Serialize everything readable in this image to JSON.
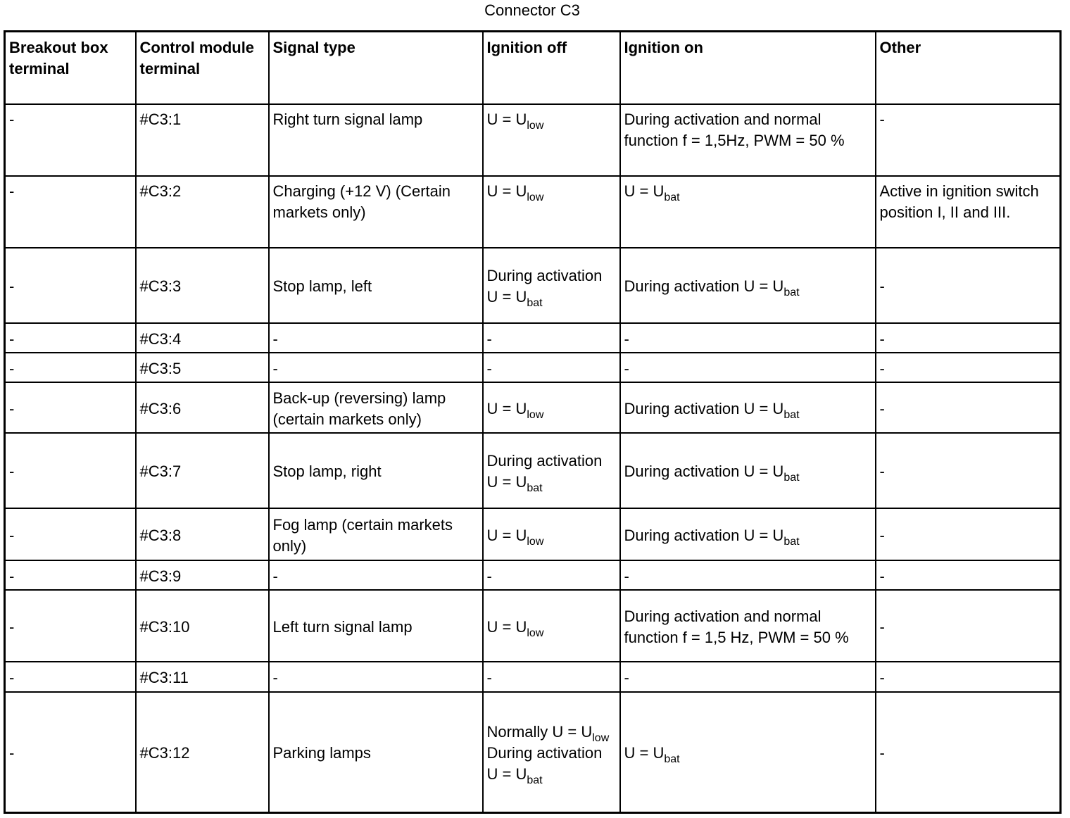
{
  "title": "Connector C3",
  "headers": [
    "Breakout box terminal",
    "Control module terminal",
    "Signal type",
    "Ignition off",
    "Ignition on",
    "Other"
  ],
  "rows": [
    {
      "cells": [
        [
          {
            "text": "-"
          }
        ],
        [
          {
            "text": "#C3:1"
          }
        ],
        [
          {
            "text": "Right turn signal lamp"
          }
        ],
        [
          {
            "text": "U = U",
            "sub": "low"
          }
        ],
        [
          {
            "text": "During activation and normal function f = 1,5Hz, PWM = 50 %"
          }
        ],
        [
          {
            "text": "-"
          }
        ]
      ]
    },
    {
      "cells": [
        [
          {
            "text": "-"
          }
        ],
        [
          {
            "text": "#C3:2"
          }
        ],
        [
          {
            "text": "Charging (+12 V) (Certain markets only)"
          }
        ],
        [
          {
            "text": "U = U",
            "sub": "low"
          }
        ],
        [
          {
            "text": "U = U",
            "sub": "bat"
          }
        ],
        [
          {
            "text": "Active in ignition switch position I, II and III."
          }
        ]
      ]
    },
    {
      "cells": [
        [
          {
            "text": "-"
          }
        ],
        [
          {
            "text": "#C3:3"
          }
        ],
        [
          {
            "text": "Stop lamp, left"
          }
        ],
        [
          {
            "text": "During activation U = U",
            "sub": "bat"
          }
        ],
        [
          {
            "text": "During activation U = U",
            "sub": "bat"
          }
        ],
        [
          {
            "text": "-"
          }
        ]
      ]
    },
    {
      "cells": [
        [
          {
            "text": "-"
          }
        ],
        [
          {
            "text": "#C3:4"
          }
        ],
        [
          {
            "text": "-"
          }
        ],
        [
          {
            "text": "-"
          }
        ],
        [
          {
            "text": "-"
          }
        ],
        [
          {
            "text": "-"
          }
        ]
      ]
    },
    {
      "cells": [
        [
          {
            "text": "-"
          }
        ],
        [
          {
            "text": "#C3:5"
          }
        ],
        [
          {
            "text": "-"
          }
        ],
        [
          {
            "text": "-"
          }
        ],
        [
          {
            "text": "-"
          }
        ],
        [
          {
            "text": "-"
          }
        ]
      ]
    },
    {
      "cells": [
        [
          {
            "text": "-"
          }
        ],
        [
          {
            "text": "#C3:6"
          }
        ],
        [
          {
            "text": "Back-up (reversing) lamp (certain markets only)"
          }
        ],
        [
          {
            "text": "U = U",
            "sub": "low"
          }
        ],
        [
          {
            "text": "During activation U = U",
            "sub": "bat"
          }
        ],
        [
          {
            "text": "-"
          }
        ]
      ]
    },
    {
      "cells": [
        [
          {
            "text": "-"
          }
        ],
        [
          {
            "text": "#C3:7"
          }
        ],
        [
          {
            "text": "Stop lamp, right"
          }
        ],
        [
          {
            "text": "During activation U = U",
            "sub": "bat"
          }
        ],
        [
          {
            "text": "During activation U = U",
            "sub": "bat"
          }
        ],
        [
          {
            "text": "-"
          }
        ]
      ]
    },
    {
      "cells": [
        [
          {
            "text": "-"
          }
        ],
        [
          {
            "text": "#C3:8"
          }
        ],
        [
          {
            "text": "Fog lamp (certain markets only)"
          }
        ],
        [
          {
            "text": "U = U",
            "sub": "low"
          }
        ],
        [
          {
            "text": "During activation U = U",
            "sub": "bat"
          }
        ],
        [
          {
            "text": "-"
          }
        ]
      ]
    },
    {
      "cells": [
        [
          {
            "text": "-"
          }
        ],
        [
          {
            "text": "#C3:9"
          }
        ],
        [
          {
            "text": "-"
          }
        ],
        [
          {
            "text": "-"
          }
        ],
        [
          {
            "text": "-"
          }
        ],
        [
          {
            "text": "-"
          }
        ]
      ]
    },
    {
      "cells": [
        [
          {
            "text": "-"
          }
        ],
        [
          {
            "text": "#C3:10"
          }
        ],
        [
          {
            "text": "Left turn signal lamp"
          }
        ],
        [
          {
            "text": "U = U",
            "sub": "low"
          }
        ],
        [
          {
            "text": "During activation and normal function f = 1,5 Hz, PWM = 50 %"
          }
        ],
        [
          {
            "text": "-"
          }
        ]
      ]
    },
    {
      "cells": [
        [
          {
            "text": "-"
          }
        ],
        [
          {
            "text": "#C3:11"
          }
        ],
        [
          {
            "text": "-"
          }
        ],
        [
          {
            "text": "-"
          }
        ],
        [
          {
            "text": "-"
          }
        ],
        [
          {
            "text": "-"
          }
        ]
      ]
    },
    {
      "cells": [
        [
          {
            "text": "-"
          }
        ],
        [
          {
            "text": "#C3:12"
          }
        ],
        [
          {
            "text": "Parking lamps"
          }
        ],
        [
          {
            "text": "Normally U = U",
            "sub": "low"
          },
          {
            "text": "During activation U = U",
            "sub": "bat",
            "br": true
          }
        ],
        [
          {
            "text": "U = U",
            "sub": "bat"
          }
        ],
        [
          {
            "text": "-"
          }
        ]
      ]
    }
  ]
}
